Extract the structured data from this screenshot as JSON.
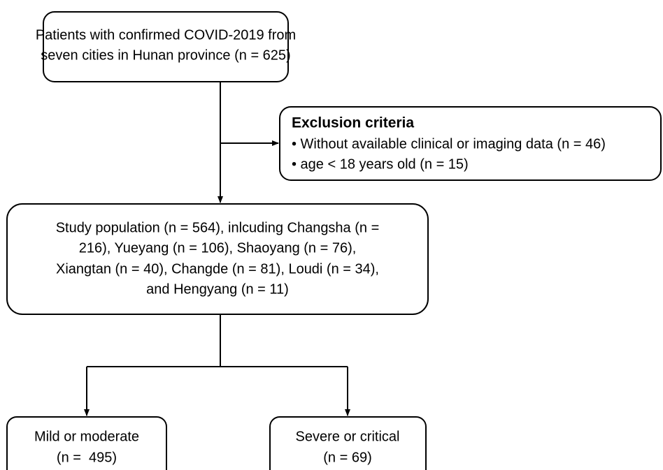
{
  "nodes": [
    {
      "lines": [
        "Patients with confirmed COVID-2019 from",
        "seven cities in Hunan province (n = 625)"
      ]
    },
    {
      "title": "Exclusion criteria",
      "lines": [
        "• Without available clinical or imaging data (n = 46)",
        "• age < 18 years old (n = 15)"
      ]
    },
    {
      "lines": [
        "Study population (n = 564), inlcuding Changsha (n =",
        "216), Yueyang (n = 106), Shaoyang (n = 76),",
        "Xiangtan (n = 40), Changde (n = 81), Loudi (n = 34),",
        "and Hengyang (n = 11)"
      ]
    },
    {
      "lines": [
        "Mild or moderate",
        "(n =  495)"
      ]
    },
    {
      "lines": [
        "Severe or critical",
        "(n = 69)"
      ]
    }
  ]
}
